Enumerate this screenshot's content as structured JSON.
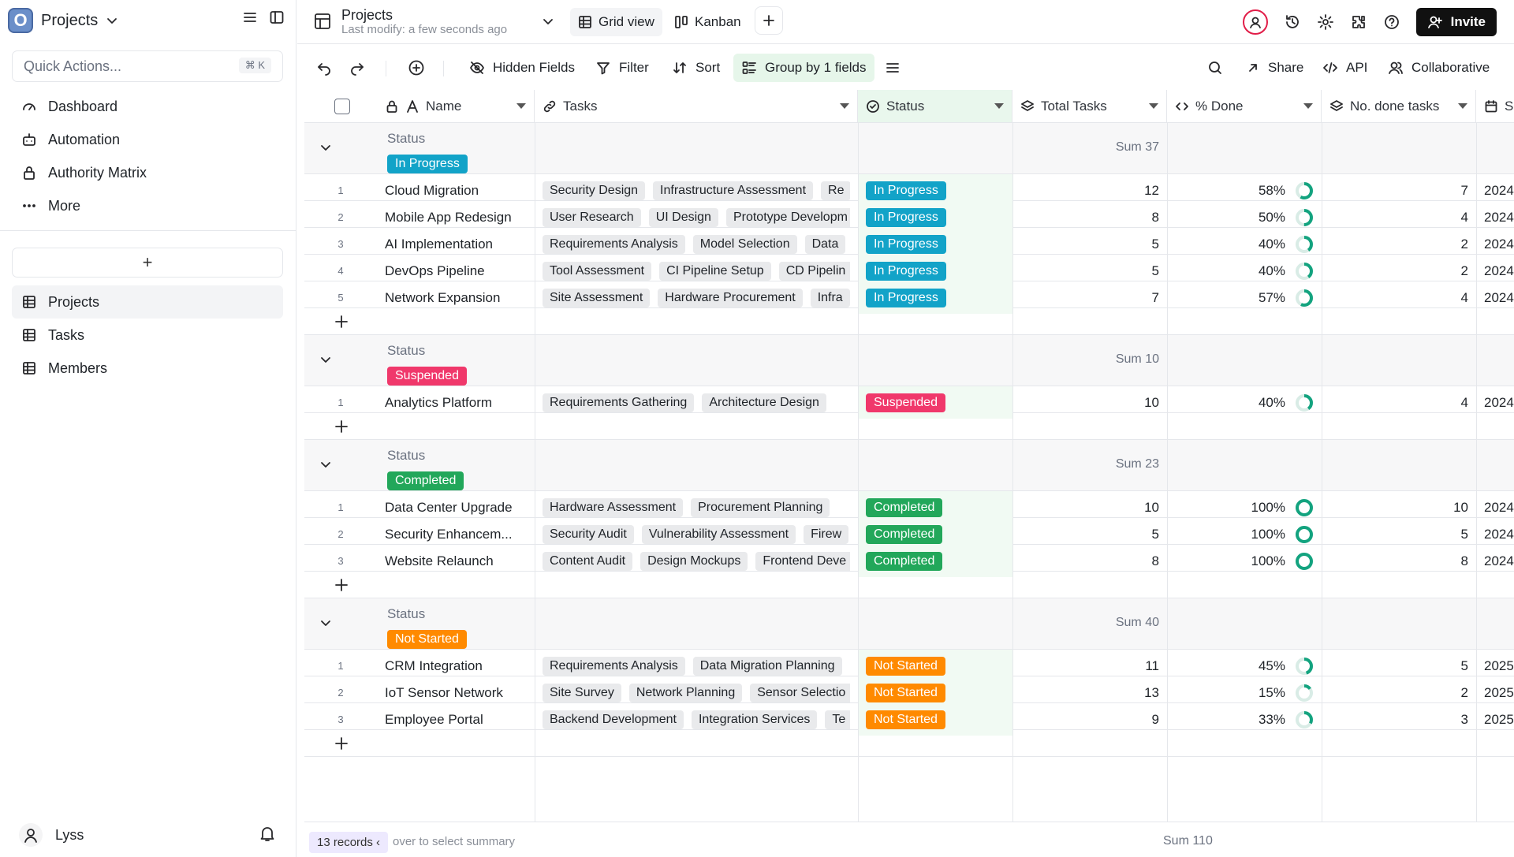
{
  "app": {
    "name": "Projects",
    "logo_letter": "O"
  },
  "sidebar": {
    "quick_actions": {
      "placeholder": "Quick Actions...",
      "shortcut": "⌘ K"
    },
    "nav": [
      {
        "label": "Dashboard",
        "icon": "dashboard-icon"
      },
      {
        "label": "Automation",
        "icon": "robot-icon"
      },
      {
        "label": "Authority Matrix",
        "icon": "lock-icon"
      },
      {
        "label": "More",
        "icon": "more-icon"
      }
    ],
    "tables": [
      {
        "label": "Projects",
        "active": true
      },
      {
        "label": "Tasks",
        "active": false
      },
      {
        "label": "Members",
        "active": false
      }
    ],
    "add_label": "+",
    "user": "Lyss"
  },
  "topbar": {
    "title": "Projects",
    "subtitle": "Last modify: a few seconds ago",
    "views": [
      {
        "label": "Grid view",
        "active": true
      },
      {
        "label": "Kanban",
        "active": false
      }
    ],
    "invite": "Invite"
  },
  "toolbar": {
    "hidden_fields": "Hidden Fields",
    "filter": "Filter",
    "sort": "Sort",
    "group": "Group by 1 fields",
    "share": "Share",
    "api": "API",
    "collaborative": "Collaborative"
  },
  "columns": {
    "name": "Name",
    "tasks": "Tasks",
    "status": "Status",
    "total": "Total Tasks",
    "done": "% Done",
    "done_tasks": "No. done tasks",
    "partial": "S"
  },
  "colors": {
    "in_progress": "#12a3c8",
    "suspended": "#f0386b",
    "completed": "#22a75a",
    "not_started": "#ff8a00",
    "donut": "#13a37f"
  },
  "group_label": "Status",
  "groups": [
    {
      "status": "In Progress",
      "sum": "Sum 37",
      "color": "#12a3c8",
      "rows": [
        {
          "n": "1",
          "name": "Cloud Migration",
          "tasks": [
            "Security Design",
            "Infrastructure Assessment",
            "Re"
          ],
          "total": "12",
          "pct": "58%",
          "pct_value": 58,
          "done": "7",
          "date": "2024"
        },
        {
          "n": "2",
          "name": "Mobile App Redesign",
          "tasks": [
            "User Research",
            "UI Design",
            "Prototype Developm"
          ],
          "total": "8",
          "pct": "50%",
          "pct_value": 50,
          "done": "4",
          "date": "2024"
        },
        {
          "n": "3",
          "name": "AI Implementation",
          "tasks": [
            "Requirements Analysis",
            "Model Selection",
            "Data"
          ],
          "total": "5",
          "pct": "40%",
          "pct_value": 40,
          "done": "2",
          "date": "2024"
        },
        {
          "n": "4",
          "name": "DevOps Pipeline",
          "tasks": [
            "Tool Assessment",
            "CI Pipeline Setup",
            "CD Pipelin"
          ],
          "total": "5",
          "pct": "40%",
          "pct_value": 40,
          "done": "2",
          "date": "2024"
        },
        {
          "n": "5",
          "name": "Network Expansion",
          "tasks": [
            "Site Assessment",
            "Hardware Procurement",
            "Infra"
          ],
          "total": "7",
          "pct": "57%",
          "pct_value": 57,
          "done": "4",
          "date": "2024"
        }
      ]
    },
    {
      "status": "Suspended",
      "sum": "Sum 10",
      "color": "#f0386b",
      "rows": [
        {
          "n": "1",
          "name": "Analytics Platform",
          "tasks": [
            "Requirements Gathering",
            "Architecture Design"
          ],
          "total": "10",
          "pct": "40%",
          "pct_value": 40,
          "done": "4",
          "date": "2024"
        }
      ]
    },
    {
      "status": "Completed",
      "sum": "Sum 23",
      "color": "#22a75a",
      "rows": [
        {
          "n": "1",
          "name": "Data Center Upgrade",
          "tasks": [
            "Hardware Assessment",
            "Procurement Planning"
          ],
          "total": "10",
          "pct": "100%",
          "pct_value": 100,
          "done": "10",
          "date": "2024"
        },
        {
          "n": "2",
          "name": "Security Enhancem...",
          "tasks": [
            "Security Audit",
            "Vulnerability Assessment",
            "Firew"
          ],
          "total": "5",
          "pct": "100%",
          "pct_value": 100,
          "done": "5",
          "date": "2024"
        },
        {
          "n": "3",
          "name": "Website Relaunch",
          "tasks": [
            "Content Audit",
            "Design Mockups",
            "Frontend Deve"
          ],
          "total": "8",
          "pct": "100%",
          "pct_value": 100,
          "done": "8",
          "date": "2024"
        }
      ]
    },
    {
      "status": "Not Started",
      "sum": "Sum 40",
      "color": "#ff8a00",
      "rows": [
        {
          "n": "1",
          "name": "CRM Integration",
          "tasks": [
            "Requirements Analysis",
            "Data Migration Planning"
          ],
          "total": "11",
          "pct": "45%",
          "pct_value": 45,
          "done": "5",
          "date": "2025"
        },
        {
          "n": "2",
          "name": "IoT Sensor Network",
          "tasks": [
            "Site Survey",
            "Network Planning",
            "Sensor Selectio"
          ],
          "total": "13",
          "pct": "15%",
          "pct_value": 15,
          "done": "2",
          "date": "2025"
        },
        {
          "n": "3",
          "name": "Employee Portal",
          "tasks": [
            "Backend Development",
            "Integration Services",
            "Te"
          ],
          "total": "9",
          "pct": "33%",
          "pct_value": 33,
          "done": "3",
          "date": "2025"
        }
      ]
    }
  ],
  "footer": {
    "records": "13 records",
    "chevron": "‹",
    "hover": "over to select summary",
    "sum": "Sum 110"
  }
}
